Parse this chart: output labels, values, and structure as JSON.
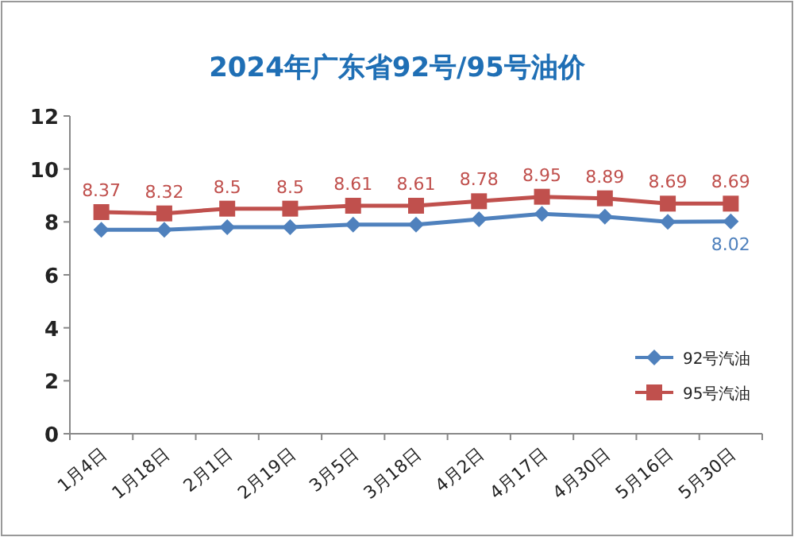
{
  "chart_data": {
    "type": "line",
    "title": "2024年广东省92号/95号油价",
    "categories": [
      "1月4日",
      "1月18日",
      "2月1日",
      "2月19日",
      "3月5日",
      "3月18日",
      "4月2日",
      "4月17日",
      "4月30日",
      "5月16日",
      "5月30日"
    ],
    "series": [
      {
        "name": "92号汽油",
        "color": "#4f81bd",
        "marker": "diamond",
        "values": [
          7.7,
          7.7,
          7.8,
          7.8,
          7.9,
          7.9,
          8.1,
          8.3,
          8.2,
          8.0,
          8.02
        ],
        "value_labels": [
          null,
          null,
          null,
          null,
          null,
          null,
          null,
          null,
          null,
          null,
          "8.02"
        ]
      },
      {
        "name": "95号汽油",
        "color": "#c0504d",
        "marker": "square",
        "values": [
          8.37,
          8.32,
          8.5,
          8.5,
          8.61,
          8.61,
          8.78,
          8.95,
          8.89,
          8.69,
          8.69
        ],
        "value_labels": [
          "8.37",
          "8.32",
          "8.5",
          "8.5",
          "8.61",
          "8.61",
          "8.78",
          "8.95",
          "8.89",
          "8.69",
          "8.69"
        ]
      }
    ],
    "ylim": [
      0,
      12
    ],
    "yticks": [
      0,
      2,
      4,
      6,
      8,
      10,
      12
    ],
    "grid": false,
    "legend": "right",
    "line_style": "solid"
  }
}
